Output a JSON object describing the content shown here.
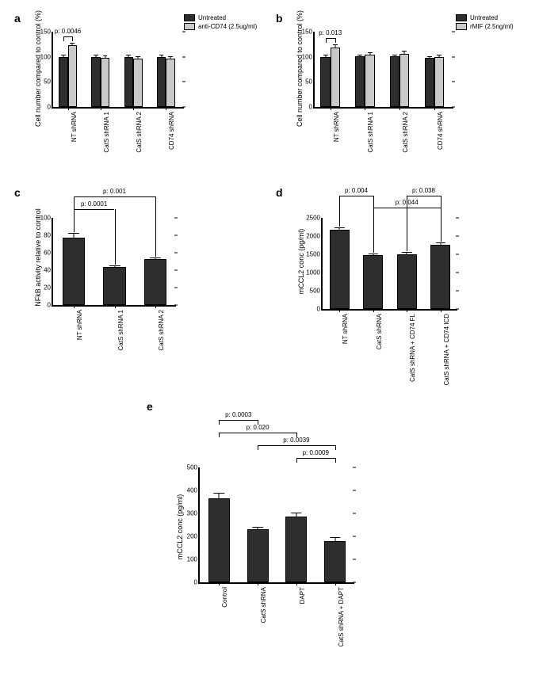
{
  "colors": {
    "dark": "#2e2e2e",
    "light": "#c9c9c9",
    "background": "#ffffff"
  },
  "panelA": {
    "label": "a",
    "legend1": "Untreated",
    "legend2": "anti-CD74 (2.5ug/ml)",
    "yAxisLabel": "Cell number compared to control (%)",
    "yMax": 150,
    "yTicks": [
      0,
      50,
      100,
      150
    ],
    "sigText": "p: 0.0046",
    "groups": [
      {
        "label": "NT shRNA",
        "v1": 100,
        "e1": 2,
        "v2": 123,
        "e2": 4
      },
      {
        "label": "CatS shRNA 1",
        "v1": 100,
        "e1": 2,
        "v2": 98,
        "e2": 3
      },
      {
        "label": "CatS shRNA 2",
        "v1": 100,
        "e1": 2,
        "v2": 96,
        "e2": 3
      },
      {
        "label": "CD74 shRNA",
        "v1": 100,
        "e1": 2,
        "v2": 97,
        "e2": 3
      }
    ]
  },
  "panelB": {
    "label": "b",
    "legend1": "Untreated",
    "legend2": "rMIF (2.5ng/ml)",
    "yAxisLabel": "Cell number compared to control (%)",
    "yMax": 150,
    "yTicks": [
      0,
      50,
      100,
      150
    ],
    "sigText": "p: 0.013",
    "groups": [
      {
        "label": "NT shRNA",
        "v1": 100,
        "e1": 2,
        "v2": 118,
        "e2": 5
      },
      {
        "label": "CatS shRNA 1",
        "v1": 101,
        "e1": 2,
        "v2": 104,
        "e2": 4
      },
      {
        "label": "CatS shRNA 2",
        "v1": 101,
        "e1": 2,
        "v2": 106,
        "e2": 4
      },
      {
        "label": "CD74 shRNA",
        "v1": 98,
        "e1": 2,
        "v2": 99,
        "e2": 3
      }
    ]
  },
  "panelC": {
    "label": "c",
    "yAxisLabel": "NFkB activity relative to control",
    "yMax": 100,
    "yTicks": [
      0,
      20,
      40,
      60,
      80,
      100
    ],
    "sig": [
      {
        "text": "p: 0.0001",
        "from": 0,
        "to": 1,
        "level": 1
      },
      {
        "text": "p: 0.001",
        "from": 0,
        "to": 2,
        "level": 2
      }
    ],
    "bars": [
      {
        "label": "NT shRNA",
        "v": 77,
        "e": 5
      },
      {
        "label": "CatS shRNA 1",
        "v": 44,
        "e": 1
      },
      {
        "label": "CatS shRNA 2",
        "v": 53,
        "e": 1
      }
    ]
  },
  "panelD": {
    "label": "d",
    "yAxisLabel": "mCCL2 conc (pg/ml)",
    "yMax": 2500,
    "yTicks": [
      0,
      500,
      1000,
      1500,
      2000,
      2500
    ],
    "sig": [
      {
        "text": "p: 0.004",
        "from": 0,
        "to": 1,
        "level": 2
      },
      {
        "text": "p: 0.044",
        "from": 1,
        "to": 3,
        "level": 1
      },
      {
        "text": "p: 0.038",
        "from": 2,
        "to": 3,
        "level": 2
      }
    ],
    "bars": [
      {
        "label": "NT shRNA",
        "v": 2180,
        "e": 35
      },
      {
        "label": "CatS shRNA",
        "v": 1480,
        "e": 25
      },
      {
        "label": "CatS shRNA + CD74 FL",
        "v": 1510,
        "e": 25
      },
      {
        "label": "CatS shRNA + CD74 ICD",
        "v": 1770,
        "e": 35
      }
    ]
  },
  "panelE": {
    "label": "e",
    "yAxisLabel": "mCCL2 conc (pg/ml)",
    "yMax": 500,
    "yTicks": [
      0,
      100,
      200,
      300,
      400,
      500
    ],
    "sig": [
      {
        "text": "p: 0.0003",
        "from": 0,
        "to": 1,
        "level": 4
      },
      {
        "text": "p: 0.020",
        "from": 0,
        "to": 2,
        "level": 3
      },
      {
        "text": "p: 0.0039",
        "from": 1,
        "to": 3,
        "level": 2
      },
      {
        "text": "p: 0.0009",
        "from": 2,
        "to": 3,
        "level": 1
      }
    ],
    "bars": [
      {
        "label": "Control",
        "v": 365,
        "e": 22
      },
      {
        "label": "CatS shRNA",
        "v": 230,
        "e": 7
      },
      {
        "label": "DAPT",
        "v": 285,
        "e": 16
      },
      {
        "label": "CatS shRNA + DAPT",
        "v": 180,
        "e": 12
      }
    ]
  }
}
